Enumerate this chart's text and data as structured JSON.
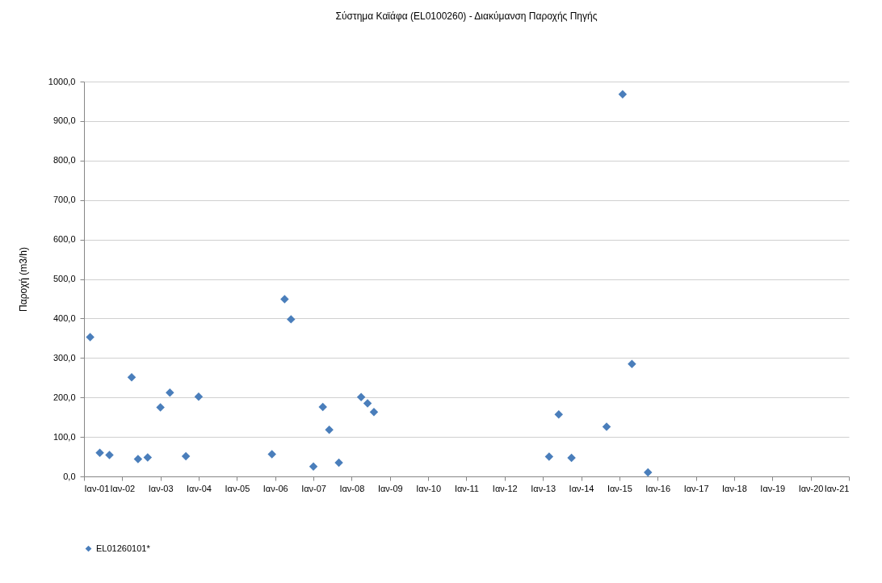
{
  "chart_data": {
    "type": "scatter",
    "title": "Σύστημα Καϊάφα  (EL0100260) - Διακύμανση Παροχής Πηγής",
    "ylabel": "Παροχή (m3/h)",
    "x": [
      "2001-03",
      "2001-06",
      "2001-09",
      "2002-04",
      "2002-06",
      "2002-09",
      "2003-01",
      "2003-04",
      "2003-09",
      "2004-01",
      "2005-12",
      "2006-04",
      "2006-06",
      "2007-01",
      "2007-04",
      "2007-06",
      "2007-09",
      "2008-04",
      "2008-06",
      "2008-08",
      "2013-03",
      "2013-06",
      "2013-10",
      "2014-09",
      "2015-02",
      "2015-05",
      "2015-10"
    ],
    "series": [
      {
        "name": "EL01260101*",
        "color": "#4a7ebb",
        "values": [
          353,
          60,
          54,
          251,
          44,
          48,
          175,
          212,
          51,
          202,
          56,
          449,
          398,
          25,
          176,
          118,
          35,
          201,
          185,
          163,
          50,
          157,
          47,
          126,
          968,
          285,
          10
        ]
      }
    ],
    "xlim": [
      "2001-01",
      "2021-01"
    ],
    "xticks": [
      {
        "value": "2001-01",
        "label": "Ιαν-01"
      },
      {
        "value": "2002-01",
        "label": "Ιαν-02"
      },
      {
        "value": "2003-01",
        "label": "Ιαν-03"
      },
      {
        "value": "2004-01",
        "label": "Ιαν-04"
      },
      {
        "value": "2005-01",
        "label": "Ιαν-05"
      },
      {
        "value": "2006-01",
        "label": "Ιαν-06"
      },
      {
        "value": "2007-01",
        "label": "Ιαν-07"
      },
      {
        "value": "2008-01",
        "label": "Ιαν-08"
      },
      {
        "value": "2009-01",
        "label": "Ιαν-09"
      },
      {
        "value": "2010-01",
        "label": "Ιαν-10"
      },
      {
        "value": "2011-01",
        "label": "Ιαν-11"
      },
      {
        "value": "2012-01",
        "label": "Ιαν-12"
      },
      {
        "value": "2013-01",
        "label": "Ιαν-13"
      },
      {
        "value": "2014-01",
        "label": "Ιαν-14"
      },
      {
        "value": "2015-01",
        "label": "Ιαν-15"
      },
      {
        "value": "2016-01",
        "label": "Ιαν-16"
      },
      {
        "value": "2017-01",
        "label": "Ιαν-17"
      },
      {
        "value": "2018-01",
        "label": "Ιαν-18"
      },
      {
        "value": "2019-01",
        "label": "Ιαν-19"
      },
      {
        "value": "2020-01",
        "label": "Ιαν-20"
      },
      {
        "value": "2021-01",
        "label": "Ιαν-21"
      }
    ],
    "ylim": [
      0,
      1000
    ],
    "yticks": [
      {
        "value": 0,
        "label": "0,0"
      },
      {
        "value": 100,
        "label": "100,0"
      },
      {
        "value": 200,
        "label": "200,0"
      },
      {
        "value": 300,
        "label": "300,0"
      },
      {
        "value": 400,
        "label": "400,0"
      },
      {
        "value": 500,
        "label": "500,0"
      },
      {
        "value": 600,
        "label": "600,0"
      },
      {
        "value": 700,
        "label": "700,0"
      },
      {
        "value": 800,
        "label": "800,0"
      },
      {
        "value": 900,
        "label": "900,0"
      },
      {
        "value": 1000,
        "label": "1000,0"
      }
    ],
    "grid": "y",
    "legend": "bottom",
    "marker": "diamond"
  }
}
